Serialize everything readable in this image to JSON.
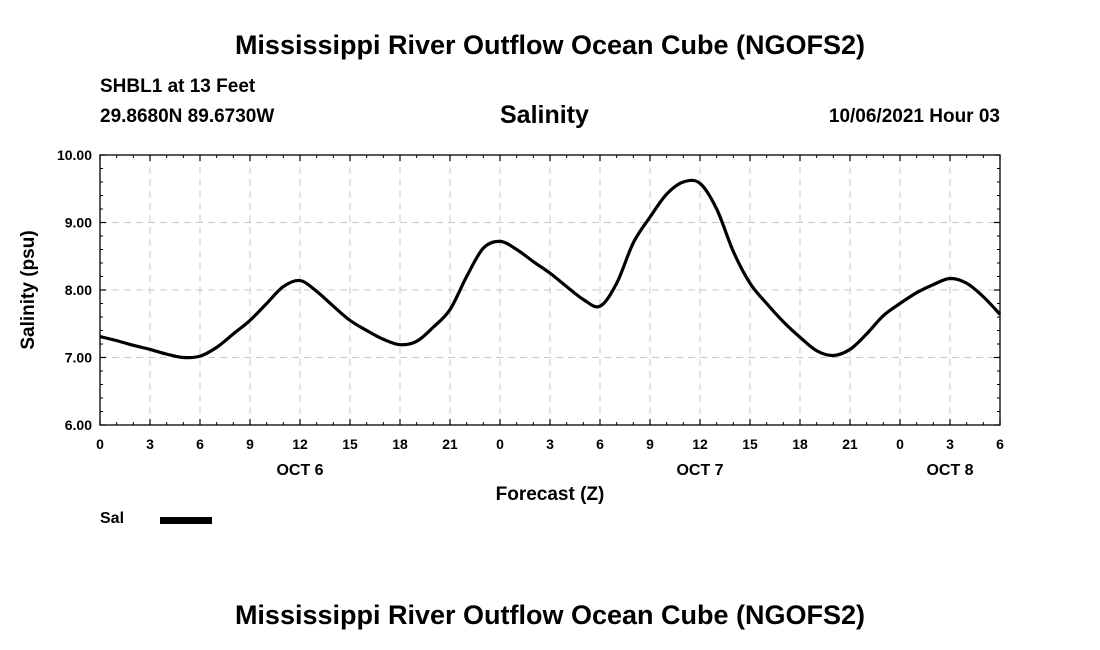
{
  "header": {
    "title": "Mississippi River Outflow Ocean Cube (NGOFS2)",
    "station": "SHBL1 at 13 Feet",
    "coords": "29.8680N  89.6730W",
    "variable": "Salinity",
    "datetime": "10/06/2021 Hour 03"
  },
  "footer": {
    "title": "Mississippi River Outflow Ocean Cube (NGOFS2)"
  },
  "legend": {
    "label": "Sal",
    "color": "#000000"
  },
  "chart_data": {
    "type": "line",
    "title": "Salinity",
    "xlabel": "Forecast (Z)",
    "ylabel": "Salinity (psu)",
    "xlim": [
      0,
      54
    ],
    "ylim": [
      6.0,
      10.0
    ],
    "grid": true,
    "x_ticks": [
      0,
      3,
      6,
      9,
      12,
      15,
      18,
      21,
      24,
      27,
      30,
      33,
      36,
      39,
      42,
      45,
      48,
      51,
      54
    ],
    "x_tick_labels": [
      "0",
      "3",
      "6",
      "9",
      "12",
      "15",
      "18",
      "21",
      "0",
      "3",
      "6",
      "9",
      "12",
      "15",
      "18",
      "21",
      "0",
      "3",
      "6"
    ],
    "y_ticks": [
      6.0,
      7.0,
      8.0,
      9.0,
      10.0
    ],
    "y_tick_labels": [
      "6.00",
      "7.00",
      "8.00",
      "9.00",
      "10.00"
    ],
    "day_labels": [
      {
        "x": 12,
        "label": "OCT 6"
      },
      {
        "x": 36,
        "label": "OCT 7"
      },
      {
        "x": 51,
        "label": "OCT 8"
      }
    ],
    "series": [
      {
        "name": "Sal",
        "x": [
          0,
          1,
          2,
          3,
          4,
          5,
          6,
          7,
          8,
          9,
          10,
          11,
          12,
          13,
          14,
          15,
          16,
          17,
          18,
          19,
          20,
          21,
          22,
          23,
          24,
          25,
          26,
          27,
          28,
          29,
          30,
          31,
          32,
          33,
          34,
          35,
          36,
          37,
          38,
          39,
          40,
          41,
          42,
          43,
          44,
          45,
          46,
          47,
          48,
          49,
          50,
          51,
          52,
          53,
          54
        ],
        "values": [
          7.31,
          7.25,
          7.18,
          7.12,
          7.05,
          7.0,
          7.02,
          7.15,
          7.35,
          7.55,
          7.8,
          8.05,
          8.14,
          7.98,
          7.76,
          7.55,
          7.4,
          7.27,
          7.19,
          7.24,
          7.45,
          7.71,
          8.2,
          8.62,
          8.72,
          8.6,
          8.42,
          8.25,
          8.05,
          7.86,
          7.76,
          8.1,
          8.7,
          9.08,
          9.42,
          9.6,
          9.58,
          9.2,
          8.57,
          8.1,
          7.8,
          7.53,
          7.3,
          7.1,
          7.03,
          7.12,
          7.35,
          7.62,
          7.8,
          7.96,
          8.08,
          8.17,
          8.1,
          7.9,
          7.64
        ]
      }
    ]
  }
}
